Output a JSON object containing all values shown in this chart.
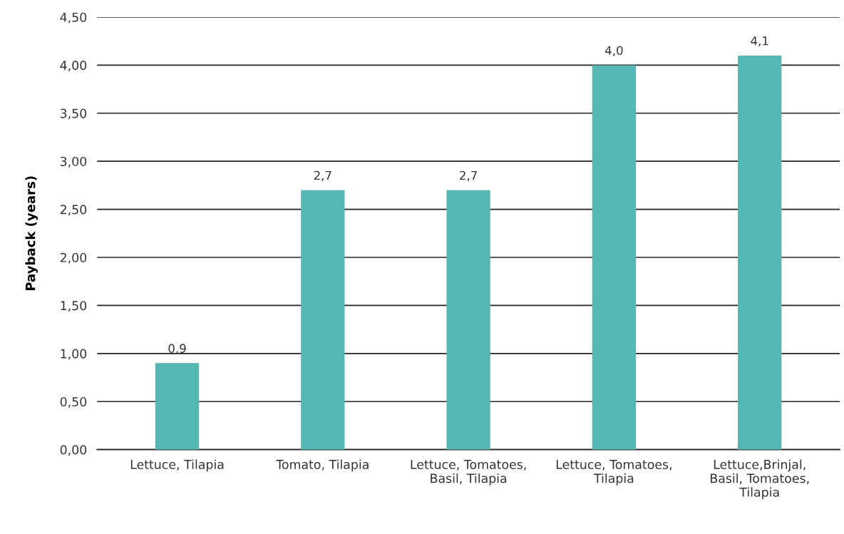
{
  "chart_data": {
    "type": "bar",
    "ylabel": "Payback (years)",
    "categories": [
      "Lettuce, Tilapia",
      "Tomato, Tilapia",
      "Lettuce, Tomatoes,\nBasil, Tilapia",
      "Lettuce, Tomatoes,\nTilapia",
      "Lettuce,Brinjal,\nBasil, Tomatoes,\nTilapia"
    ],
    "values": [
      0.9,
      2.7,
      2.7,
      4.0,
      4.1
    ],
    "value_labels": [
      "0,9",
      "2,7",
      "2,7",
      "4,0",
      "4,1"
    ],
    "color": "#56b6b3",
    "ylim": [
      0,
      4.5
    ],
    "yticks": [
      {
        "value": 0,
        "label": "0,00"
      },
      {
        "value": 0.5,
        "label": "0,50"
      },
      {
        "value": 1,
        "label": "1,00"
      },
      {
        "value": 1.5,
        "label": "1,50"
      },
      {
        "value": 2,
        "label": "2,00"
      },
      {
        "value": 2.5,
        "label": "2,50"
      },
      {
        "value": 3,
        "label": "3,00"
      },
      {
        "value": 3.5,
        "label": "3,50"
      },
      {
        "value": 4,
        "label": "4,00"
      },
      {
        "value": 4.5,
        "label": "4,50"
      }
    ],
    "grid": "y"
  }
}
